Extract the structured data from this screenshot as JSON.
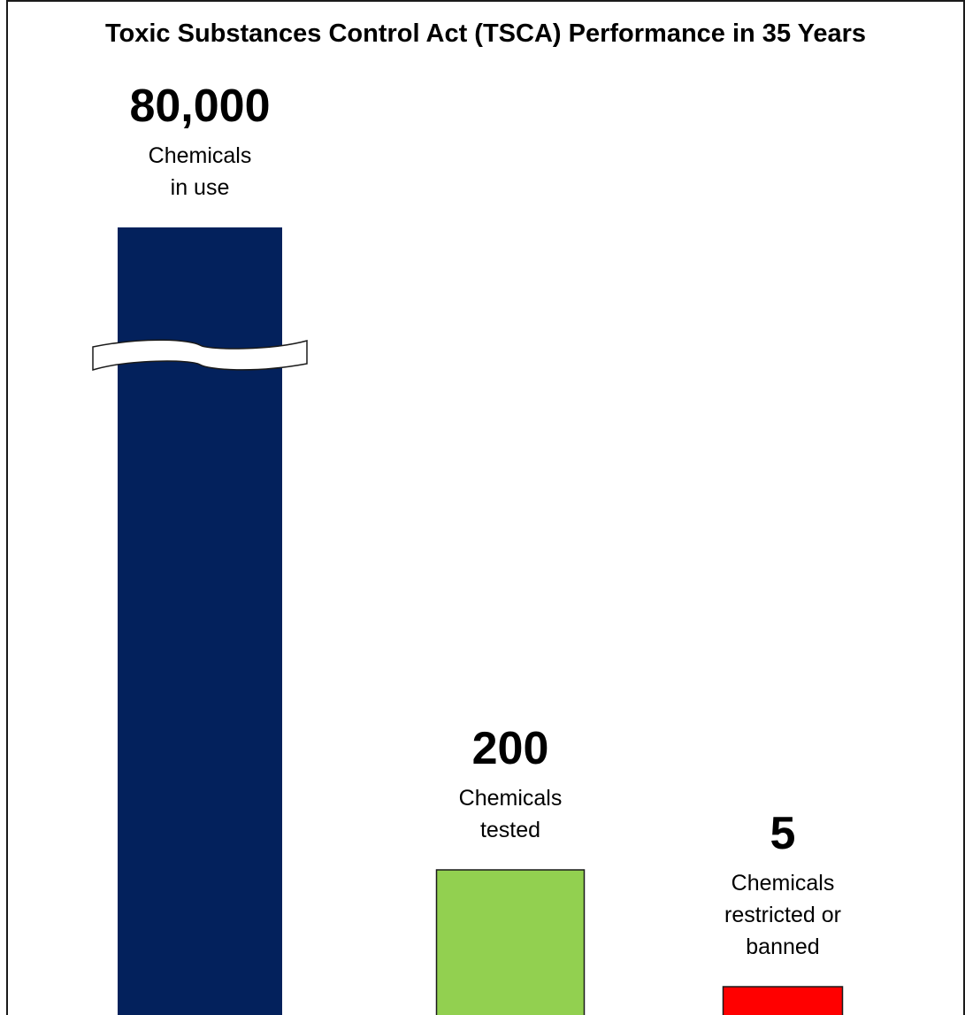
{
  "chart_data": {
    "type": "bar",
    "title": "Toxic Substances Control Act (TSCA) Performance in 35 Years",
    "categories": [
      [
        "Chemicals",
        "in use"
      ],
      [
        "Chemicals",
        "tested"
      ],
      [
        "Chemicals",
        "restricted or",
        "banned"
      ]
    ],
    "values": [
      80000,
      200,
      5
    ],
    "value_labels": [
      "80,000",
      "200",
      "5"
    ],
    "colors": [
      "#03215c",
      "#92d050",
      "#ff0000"
    ],
    "axis_break_on_first_bar": true,
    "grid": false,
    "legend": "none"
  }
}
